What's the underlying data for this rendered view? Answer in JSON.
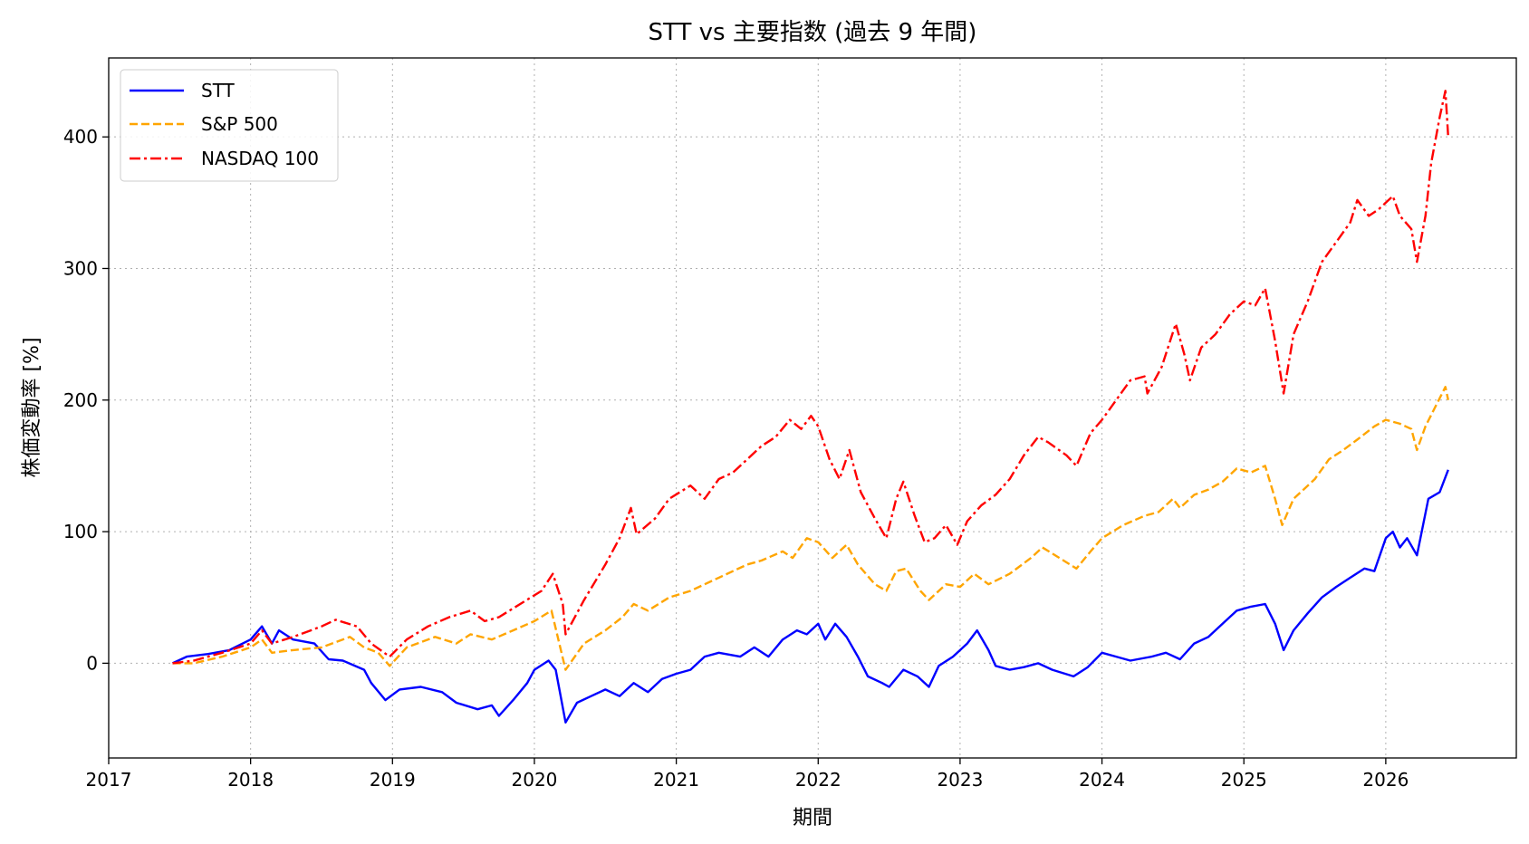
{
  "chart_data": {
    "type": "line",
    "title": "STT vs 主要指数 (過去 9 年間)",
    "xlabel": "期間",
    "ylabel": "株価変動率 [%]",
    "xlim": [
      2017.0,
      2026.92
    ],
    "ylim": [
      -72,
      460
    ],
    "xticks": [
      2017,
      2018,
      2019,
      2020,
      2021,
      2022,
      2023,
      2024,
      2025,
      2026
    ],
    "yticks": [
      0,
      100,
      200,
      300,
      400
    ],
    "grid": true,
    "legend_position": "upper-left",
    "series": [
      {
        "name": "STT",
        "color": "#0000ff",
        "dash": "solid",
        "points": [
          [
            2017.45,
            0
          ],
          [
            2017.55,
            5
          ],
          [
            2017.7,
            7
          ],
          [
            2017.85,
            10
          ],
          [
            2018.0,
            18
          ],
          [
            2018.08,
            28
          ],
          [
            2018.15,
            15
          ],
          [
            2018.2,
            25
          ],
          [
            2018.3,
            18
          ],
          [
            2018.45,
            15
          ],
          [
            2018.55,
            3
          ],
          [
            2018.65,
            2
          ],
          [
            2018.8,
            -5
          ],
          [
            2018.85,
            -15
          ],
          [
            2018.95,
            -28
          ],
          [
            2019.05,
            -20
          ],
          [
            2019.2,
            -18
          ],
          [
            2019.35,
            -22
          ],
          [
            2019.45,
            -30
          ],
          [
            2019.6,
            -35
          ],
          [
            2019.7,
            -32
          ],
          [
            2019.75,
            -40
          ],
          [
            2019.85,
            -28
          ],
          [
            2019.95,
            -15
          ],
          [
            2020.0,
            -5
          ],
          [
            2020.1,
            2
          ],
          [
            2020.15,
            -5
          ],
          [
            2020.22,
            -45
          ],
          [
            2020.3,
            -30
          ],
          [
            2020.4,
            -25
          ],
          [
            2020.5,
            -20
          ],
          [
            2020.6,
            -25
          ],
          [
            2020.7,
            -15
          ],
          [
            2020.8,
            -22
          ],
          [
            2020.9,
            -12
          ],
          [
            2021.0,
            -8
          ],
          [
            2021.1,
            -5
          ],
          [
            2021.2,
            5
          ],
          [
            2021.3,
            8
          ],
          [
            2021.45,
            5
          ],
          [
            2021.55,
            12
          ],
          [
            2021.65,
            5
          ],
          [
            2021.75,
            18
          ],
          [
            2021.85,
            25
          ],
          [
            2021.92,
            22
          ],
          [
            2022.0,
            30
          ],
          [
            2022.05,
            18
          ],
          [
            2022.12,
            30
          ],
          [
            2022.2,
            20
          ],
          [
            2022.28,
            5
          ],
          [
            2022.35,
            -10
          ],
          [
            2022.45,
            -15
          ],
          [
            2022.5,
            -18
          ],
          [
            2022.6,
            -5
          ],
          [
            2022.7,
            -10
          ],
          [
            2022.78,
            -18
          ],
          [
            2022.85,
            -2
          ],
          [
            2022.95,
            5
          ],
          [
            2023.05,
            15
          ],
          [
            2023.12,
            25
          ],
          [
            2023.2,
            10
          ],
          [
            2023.25,
            -2
          ],
          [
            2023.35,
            -5
          ],
          [
            2023.45,
            -3
          ],
          [
            2023.55,
            0
          ],
          [
            2023.65,
            -5
          ],
          [
            2023.8,
            -10
          ],
          [
            2023.9,
            -3
          ],
          [
            2024.0,
            8
          ],
          [
            2024.1,
            5
          ],
          [
            2024.2,
            2
          ],
          [
            2024.35,
            5
          ],
          [
            2024.45,
            8
          ],
          [
            2024.55,
            3
          ],
          [
            2024.65,
            15
          ],
          [
            2024.75,
            20
          ],
          [
            2024.85,
            30
          ],
          [
            2024.95,
            40
          ],
          [
            2025.05,
            43
          ],
          [
            2025.15,
            45
          ],
          [
            2025.22,
            30
          ],
          [
            2025.28,
            10
          ],
          [
            2025.35,
            25
          ],
          [
            2025.45,
            38
          ],
          [
            2025.55,
            50
          ],
          [
            2025.65,
            58
          ],
          [
            2025.75,
            65
          ],
          [
            2025.85,
            72
          ],
          [
            2025.92,
            70
          ],
          [
            2026.0,
            95
          ],
          [
            2026.05,
            100
          ],
          [
            2026.1,
            88
          ],
          [
            2026.15,
            95
          ],
          [
            2026.22,
            82
          ],
          [
            2026.3,
            125
          ],
          [
            2026.38,
            130
          ],
          [
            2026.44,
            147
          ]
        ]
      },
      {
        "name": "S&P 500",
        "color": "#ffa500",
        "dash": "dashed",
        "points": [
          [
            2017.45,
            0
          ],
          [
            2017.6,
            0
          ],
          [
            2017.8,
            5
          ],
          [
            2018.0,
            12
          ],
          [
            2018.08,
            18
          ],
          [
            2018.15,
            8
          ],
          [
            2018.3,
            10
          ],
          [
            2018.5,
            12
          ],
          [
            2018.7,
            20
          ],
          [
            2018.8,
            12
          ],
          [
            2018.9,
            8
          ],
          [
            2018.98,
            -2
          ],
          [
            2019.1,
            12
          ],
          [
            2019.3,
            20
          ],
          [
            2019.45,
            15
          ],
          [
            2019.55,
            22
          ],
          [
            2019.7,
            18
          ],
          [
            2019.85,
            25
          ],
          [
            2020.0,
            32
          ],
          [
            2020.12,
            40
          ],
          [
            2020.22,
            -5
          ],
          [
            2020.35,
            15
          ],
          [
            2020.5,
            25
          ],
          [
            2020.62,
            35
          ],
          [
            2020.7,
            45
          ],
          [
            2020.8,
            40
          ],
          [
            2020.95,
            50
          ],
          [
            2021.1,
            55
          ],
          [
            2021.3,
            65
          ],
          [
            2021.5,
            75
          ],
          [
            2021.6,
            78
          ],
          [
            2021.75,
            85
          ],
          [
            2021.82,
            80
          ],
          [
            2021.92,
            95
          ],
          [
            2022.0,
            92
          ],
          [
            2022.1,
            80
          ],
          [
            2022.2,
            90
          ],
          [
            2022.28,
            75
          ],
          [
            2022.4,
            60
          ],
          [
            2022.48,
            55
          ],
          [
            2022.55,
            70
          ],
          [
            2022.62,
            72
          ],
          [
            2022.72,
            55
          ],
          [
            2022.78,
            48
          ],
          [
            2022.9,
            60
          ],
          [
            2023.0,
            58
          ],
          [
            2023.1,
            68
          ],
          [
            2023.2,
            60
          ],
          [
            2023.35,
            68
          ],
          [
            2023.5,
            80
          ],
          [
            2023.58,
            88
          ],
          [
            2023.7,
            80
          ],
          [
            2023.82,
            72
          ],
          [
            2023.92,
            85
          ],
          [
            2024.0,
            95
          ],
          [
            2024.15,
            105
          ],
          [
            2024.3,
            112
          ],
          [
            2024.4,
            115
          ],
          [
            2024.5,
            125
          ],
          [
            2024.55,
            118
          ],
          [
            2024.65,
            128
          ],
          [
            2024.75,
            132
          ],
          [
            2024.85,
            138
          ],
          [
            2024.95,
            148
          ],
          [
            2025.05,
            145
          ],
          [
            2025.15,
            150
          ],
          [
            2025.22,
            125
          ],
          [
            2025.27,
            105
          ],
          [
            2025.35,
            125
          ],
          [
            2025.5,
            140
          ],
          [
            2025.6,
            155
          ],
          [
            2025.7,
            162
          ],
          [
            2025.8,
            170
          ],
          [
            2025.92,
            180
          ],
          [
            2026.0,
            185
          ],
          [
            2026.1,
            182
          ],
          [
            2026.18,
            178
          ],
          [
            2026.22,
            162
          ],
          [
            2026.28,
            180
          ],
          [
            2026.35,
            195
          ],
          [
            2026.42,
            210
          ],
          [
            2026.44,
            200
          ]
        ]
      },
      {
        "name": "NASDAQ 100",
        "color": "#ff0000",
        "dash": "dashdot",
        "points": [
          [
            2017.45,
            0
          ],
          [
            2017.6,
            2
          ],
          [
            2017.8,
            8
          ],
          [
            2018.0,
            15
          ],
          [
            2018.08,
            25
          ],
          [
            2018.15,
            15
          ],
          [
            2018.3,
            20
          ],
          [
            2018.5,
            28
          ],
          [
            2018.6,
            33
          ],
          [
            2018.75,
            28
          ],
          [
            2018.85,
            15
          ],
          [
            2018.98,
            5
          ],
          [
            2019.1,
            18
          ],
          [
            2019.25,
            28
          ],
          [
            2019.4,
            35
          ],
          [
            2019.55,
            40
          ],
          [
            2019.65,
            32
          ],
          [
            2019.75,
            35
          ],
          [
            2019.9,
            45
          ],
          [
            2020.05,
            55
          ],
          [
            2020.13,
            68
          ],
          [
            2020.2,
            45
          ],
          [
            2020.22,
            22
          ],
          [
            2020.35,
            48
          ],
          [
            2020.5,
            75
          ],
          [
            2020.6,
            95
          ],
          [
            2020.68,
            118
          ],
          [
            2020.72,
            98
          ],
          [
            2020.85,
            110
          ],
          [
            2020.95,
            125
          ],
          [
            2021.1,
            135
          ],
          [
            2021.2,
            125
          ],
          [
            2021.3,
            140
          ],
          [
            2021.4,
            145
          ],
          [
            2021.5,
            155
          ],
          [
            2021.6,
            165
          ],
          [
            2021.7,
            172
          ],
          [
            2021.8,
            185
          ],
          [
            2021.88,
            178
          ],
          [
            2021.95,
            188
          ],
          [
            2022.0,
            180
          ],
          [
            2022.08,
            155
          ],
          [
            2022.15,
            140
          ],
          [
            2022.22,
            162
          ],
          [
            2022.3,
            130
          ],
          [
            2022.4,
            110
          ],
          [
            2022.48,
            95
          ],
          [
            2022.55,
            125
          ],
          [
            2022.6,
            138
          ],
          [
            2022.68,
            112
          ],
          [
            2022.75,
            92
          ],
          [
            2022.82,
            95
          ],
          [
            2022.9,
            105
          ],
          [
            2022.98,
            90
          ],
          [
            2023.05,
            108
          ],
          [
            2023.15,
            120
          ],
          [
            2023.25,
            128
          ],
          [
            2023.35,
            140
          ],
          [
            2023.45,
            158
          ],
          [
            2023.55,
            172
          ],
          [
            2023.62,
            168
          ],
          [
            2023.75,
            158
          ],
          [
            2023.82,
            150
          ],
          [
            2023.92,
            175
          ],
          [
            2024.0,
            185
          ],
          [
            2024.1,
            200
          ],
          [
            2024.2,
            215
          ],
          [
            2024.3,
            218
          ],
          [
            2024.32,
            205
          ],
          [
            2024.42,
            225
          ],
          [
            2024.52,
            258
          ],
          [
            2024.58,
            235
          ],
          [
            2024.62,
            215
          ],
          [
            2024.7,
            240
          ],
          [
            2024.8,
            250
          ],
          [
            2024.9,
            265
          ],
          [
            2025.0,
            275
          ],
          [
            2025.08,
            272
          ],
          [
            2025.15,
            285
          ],
          [
            2025.22,
            245
          ],
          [
            2025.28,
            205
          ],
          [
            2025.35,
            250
          ],
          [
            2025.45,
            275
          ],
          [
            2025.55,
            305
          ],
          [
            2025.65,
            320
          ],
          [
            2025.75,
            335
          ],
          [
            2025.8,
            352
          ],
          [
            2025.88,
            340
          ],
          [
            2025.95,
            345
          ],
          [
            2026.0,
            350
          ],
          [
            2026.05,
            355
          ],
          [
            2026.1,
            340
          ],
          [
            2026.18,
            330
          ],
          [
            2026.22,
            305
          ],
          [
            2026.28,
            340
          ],
          [
            2026.32,
            380
          ],
          [
            2026.38,
            415
          ],
          [
            2026.42,
            435
          ],
          [
            2026.44,
            400
          ]
        ]
      }
    ]
  }
}
